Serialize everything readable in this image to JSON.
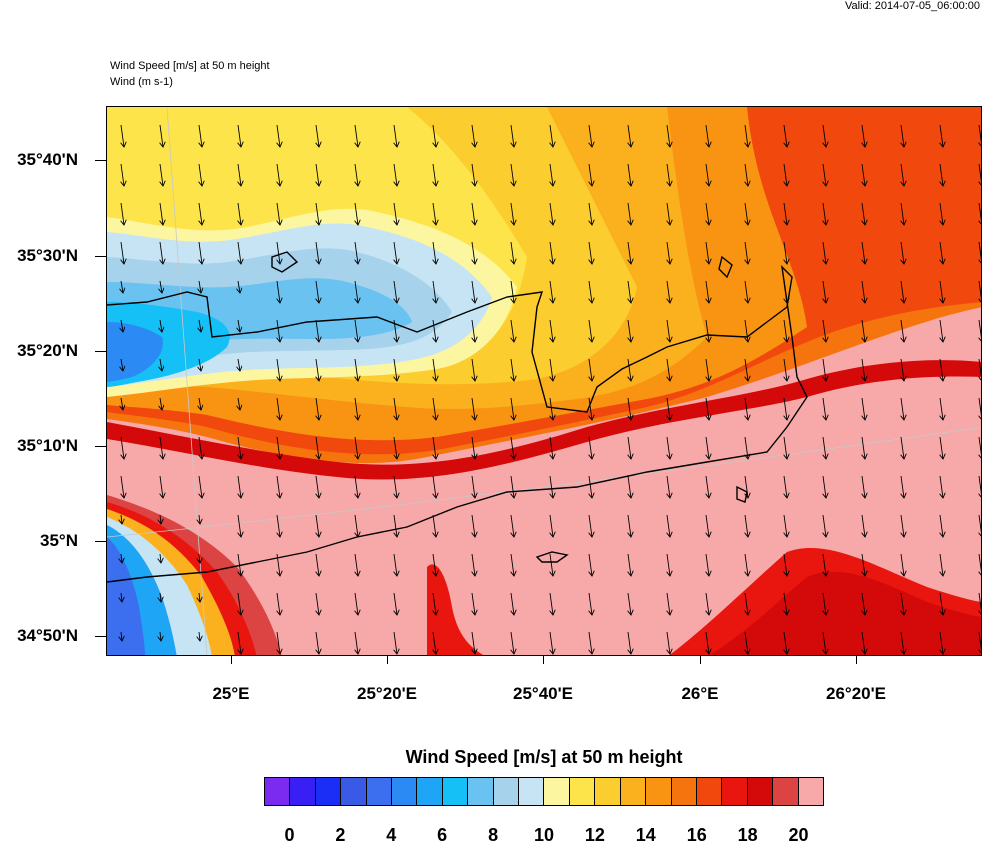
{
  "header": {
    "valid": "Valid: 2014-07-05_06:00:00",
    "title_line1": "Wind Speed [m/s] at 50 m height",
    "title_line2": "Wind   (m s-1)"
  },
  "map": {
    "lat_labels": [
      "35°40'N",
      "35°30'N",
      "35°20'N",
      "35°10'N",
      "35°N",
      "34°50'N"
    ],
    "lon_labels": [
      "25°E",
      "25°20'E",
      "25°40'E",
      "26°E",
      "26°20'E"
    ],
    "wind_field": {
      "direction": "from north-northwest",
      "speed_range_ms": [
        1,
        21
      ]
    }
  },
  "colorbar": {
    "title": "Wind Speed [m/s] at 50 m height",
    "labels": [
      "0",
      "2",
      "4",
      "6",
      "8",
      "10",
      "12",
      "14",
      "16",
      "18",
      "20"
    ],
    "colors": [
      "#7b2bf0",
      "#3a1ff5",
      "#1a2ef5",
      "#3a5ae6",
      "#3c6ef0",
      "#2c8af5",
      "#1fa5f5",
      "#14c0f5",
      "#6ac2f0",
      "#a6d2ec",
      "#c6e4f4",
      "#fdf6a0",
      "#fde44a",
      "#fbcd2e",
      "#fbb01e",
      "#f99412",
      "#f6740e",
      "#f1480e",
      "#e8160e",
      "#d40a0a",
      "#dc4444",
      "#f7a8a8"
    ]
  }
}
